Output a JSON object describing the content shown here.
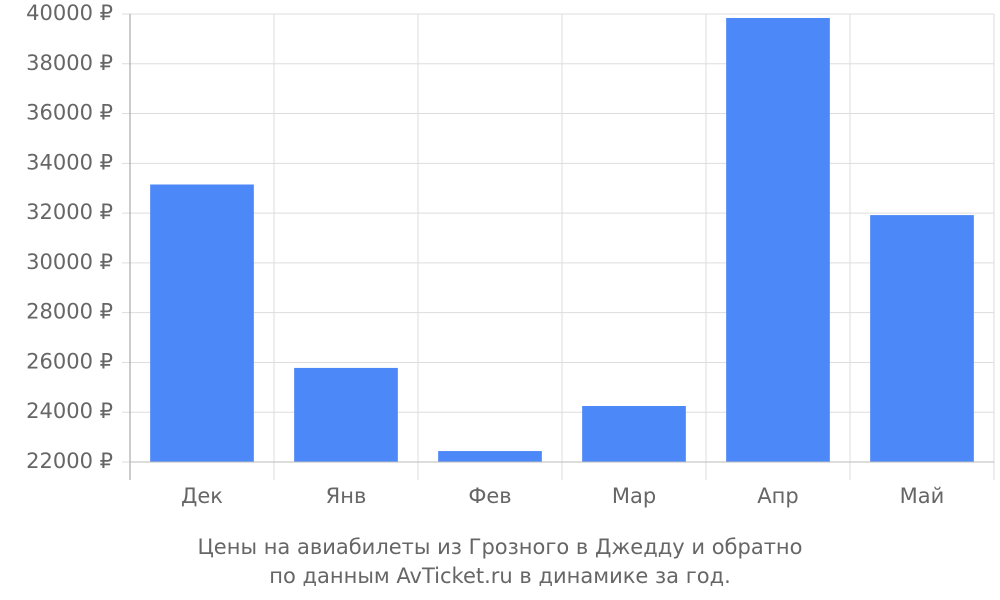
{
  "chart_data": {
    "type": "bar",
    "title_lines": [
      "Цены на авиабилеты из Грозного в Джедду и обратно",
      "по данным AvTicket.ru в динамике за год."
    ],
    "categories": [
      "Дек",
      "Янв",
      "Фев",
      "Мар",
      "Апр",
      "Май"
    ],
    "values": [
      33150,
      25780,
      22440,
      24250,
      39840,
      31920
    ],
    "color": "#4d88f8",
    "ylim": [
      22000,
      40000
    ],
    "yticks": [
      {
        "value": 22000,
        "label": "22000 ₽"
      },
      {
        "value": 24000,
        "label": "24000 ₽"
      },
      {
        "value": 26000,
        "label": "26000 ₽"
      },
      {
        "value": 28000,
        "label": "28000 ₽"
      },
      {
        "value": 30000,
        "label": "30000 ₽"
      },
      {
        "value": 32000,
        "label": "32000 ₽"
      },
      {
        "value": 34000,
        "label": "34000 ₽"
      },
      {
        "value": 36000,
        "label": "36000 ₽"
      },
      {
        "value": 38000,
        "label": "38000 ₽"
      },
      {
        "value": 40000,
        "label": "40000 ₽"
      }
    ],
    "grid": true
  }
}
